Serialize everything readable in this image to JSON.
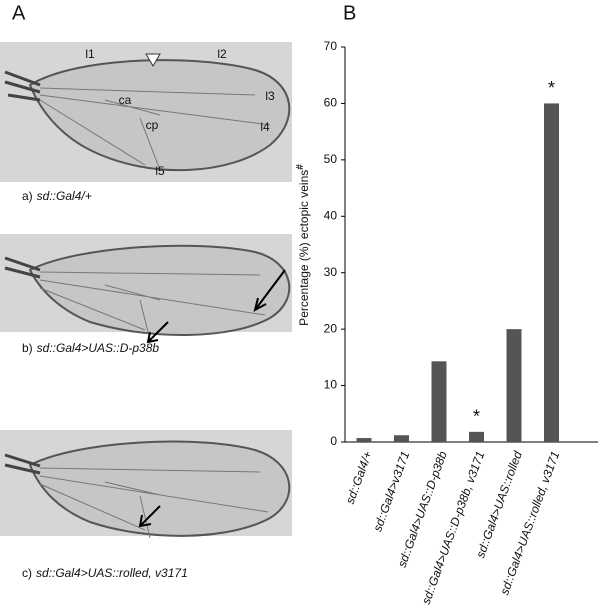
{
  "panel_a": {
    "label": "A",
    "wing_labels": [
      "l1",
      "l2",
      "l3",
      "l4",
      "l5",
      "ca",
      "cp"
    ],
    "captions": [
      {
        "prefix": "a)",
        "genotype": "sd::Gal4/+"
      },
      {
        "prefix": "b)",
        "genotype": "sd::Gal4>UAS::D-p38b"
      },
      {
        "prefix": "c)",
        "genotype": "sd::Gal4>UAS::rolled, v3171"
      }
    ]
  },
  "chart_data": {
    "type": "bar",
    "panel_label": "B",
    "ylabel": "Percentage (%)  ectopic veins",
    "ylabel_mark": "#",
    "categories": [
      "sd::Gal4/+",
      "sd::Gal4>v3171",
      "sd::Gal4>UAS::D-p38b",
      "sd::Gal4>UAS::D-p38b, v3171",
      "sd::Gal4>UAS::rolled",
      "sd::Gal4>UAS::rolled, v3171"
    ],
    "values": [
      0.7,
      1.2,
      14.3,
      1.8,
      20,
      60
    ],
    "color": "#555555",
    "ylim": [
      0,
      70
    ],
    "yticks": [
      0,
      10,
      20,
      30,
      40,
      50,
      60,
      70
    ],
    "grid": false,
    "annotations": [
      {
        "text": "*",
        "category": "sd::Gal4>UAS::D-p38b, v3171"
      },
      {
        "text": "*",
        "category": "sd::Gal4>UAS::rolled, v3171"
      }
    ]
  }
}
